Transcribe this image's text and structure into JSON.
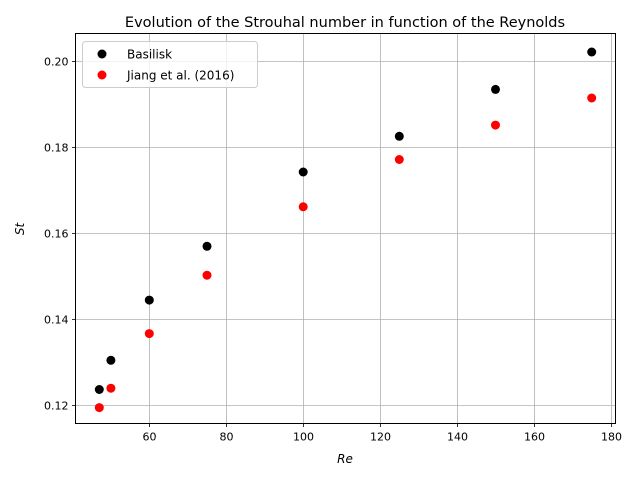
{
  "chart_data": {
    "type": "scatter",
    "title": "Evolution of the Strouhal number in function of the Reynolds",
    "xlabel": "Re",
    "ylabel": "St",
    "xlim": [
      40.8,
      181.2
    ],
    "ylim": [
      0.1158,
      0.2065
    ],
    "xticks": [
      60,
      80,
      100,
      120,
      140,
      160,
      180
    ],
    "yticks": [
      0.12,
      0.14,
      0.16,
      0.18,
      0.2
    ],
    "xtick_labels": [
      "60",
      "80",
      "100",
      "120",
      "140",
      "160",
      "180"
    ],
    "ytick_labels": [
      "0.12",
      "0.14",
      "0.16",
      "0.18",
      "0.20"
    ],
    "grid": true,
    "legend_position": "top-left",
    "series": [
      {
        "name": "Basilisk",
        "color": "#000000",
        "x": [
          47,
          50,
          60,
          75,
          100,
          125,
          150,
          175
        ],
        "y": [
          0.1237,
          0.1305,
          0.1445,
          0.157,
          0.1743,
          0.1826,
          0.1935,
          0.2022
        ]
      },
      {
        "name": "Jiang et al. (2016)",
        "color": "#ff0000",
        "x": [
          47,
          50,
          60,
          75,
          100,
          125,
          150,
          175
        ],
        "y": [
          0.1195,
          0.124,
          0.1367,
          0.1503,
          0.1662,
          0.1772,
          0.1852,
          0.1915
        ]
      }
    ]
  }
}
